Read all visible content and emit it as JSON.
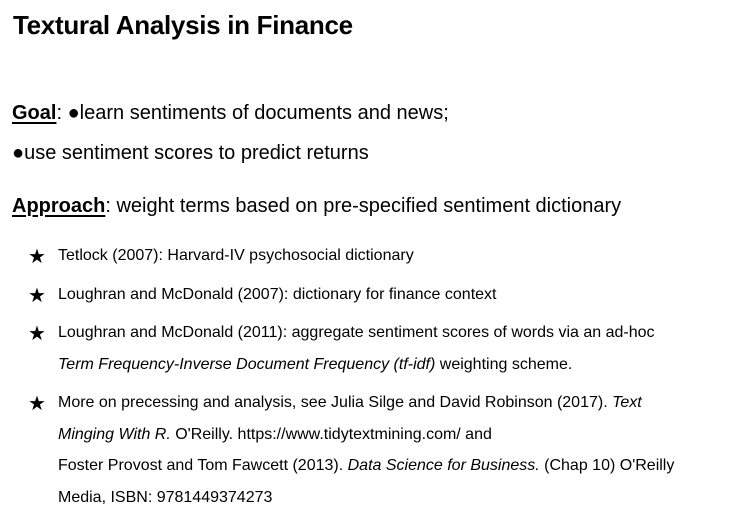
{
  "title": "Textural Analysis in Finance",
  "goal": {
    "head": "Goal",
    "sep": ": ",
    "bullet_glyph": "●",
    "points": [
      "learn sentiments of documents and news;",
      "use sentiment scores to predict returns"
    ]
  },
  "approach": {
    "head": "Approach",
    "text": ": weight terms based on pre-specified sentiment dictionary"
  },
  "star_glyph": "★",
  "items": [
    {
      "l1": "Tetlock (2007): Harvard-IV psychosocial dictionary"
    },
    {
      "l1": "Loughran and McDonald (2007): dictionary for finance context"
    },
    {
      "l1": "Loughran and McDonald (2011): aggregate sentiment scores of words via an ad-hoc",
      "l2_italic": "Term Frequency-Inverse Document Frequency (tf-idf)",
      "l2_rest": " weighting scheme."
    },
    {
      "l1_plain": "More on precessing and analysis, see Julia Silge and David Robinson (2017). ",
      "l1_italic": "Text",
      "l2_italic": "Minging With R.",
      "l2_rest": " O'Reilly. https://www.tidytextmining.com/ and",
      "l3_plain": "Foster Provost and Tom Fawcett (2013). ",
      "l3_italic": "Data Science for Business.",
      "l3_rest": " (Chap 10) O'Reilly",
      "l4": "Media, ISBN: 9781449374273"
    }
  ]
}
